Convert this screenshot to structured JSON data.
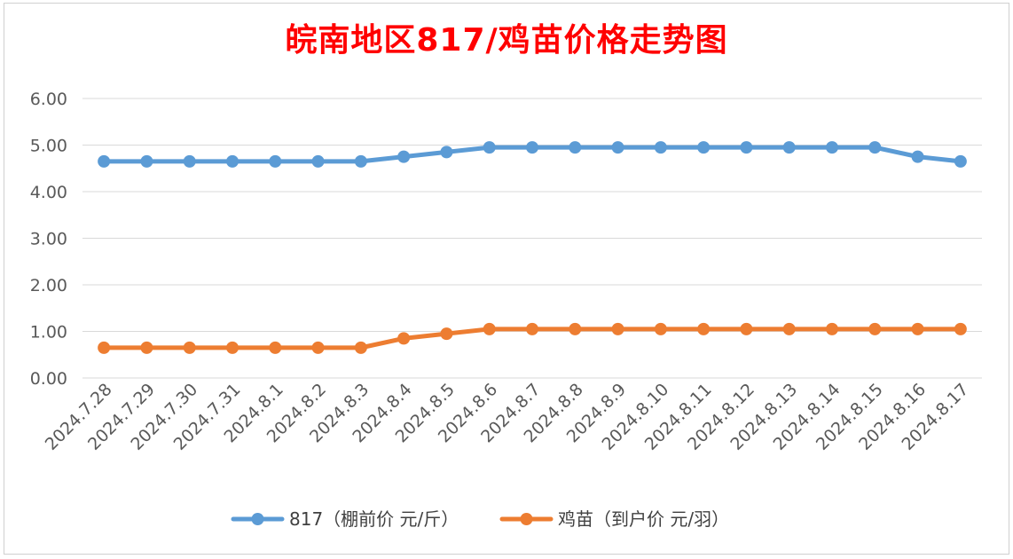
{
  "chart_data": {
    "type": "line",
    "title": "皖南地区817/鸡苗价格走势图",
    "xlabel": "",
    "ylabel": "",
    "ylim": [
      0,
      6
    ],
    "yticks": [
      "0.00",
      "1.00",
      "2.00",
      "3.00",
      "4.00",
      "5.00",
      "6.00"
    ],
    "categories": [
      "2024.7.28",
      "2024.7.29",
      "2024.7.30",
      "2024.7.31",
      "2024.8.1",
      "2024.8.2",
      "2024.8.3",
      "2024.8.4",
      "2024.8.5",
      "2024.8.6",
      "2024.8.7",
      "2024.8.8",
      "2024.8.9",
      "2024.8.10",
      "2024.8.11",
      "2024.8.12",
      "2024.8.13",
      "2024.8.14",
      "2024.8.15",
      "2024.8.16",
      "2024.8.17"
    ],
    "series": [
      {
        "name": "817（棚前价 元/斤）",
        "color": "#5b9bd5",
        "values": [
          4.65,
          4.65,
          4.65,
          4.65,
          4.65,
          4.65,
          4.65,
          4.75,
          4.85,
          4.95,
          4.95,
          4.95,
          4.95,
          4.95,
          4.95,
          4.95,
          4.95,
          4.95,
          4.95,
          4.75,
          4.65
        ]
      },
      {
        "name": "鸡苗（到户价 元/羽）",
        "color": "#ed7d31",
        "values": [
          0.65,
          0.65,
          0.65,
          0.65,
          0.65,
          0.65,
          0.65,
          0.85,
          0.95,
          1.05,
          1.05,
          1.05,
          1.05,
          1.05,
          1.05,
          1.05,
          1.05,
          1.05,
          1.05,
          1.05,
          1.05
        ]
      }
    ],
    "grid": true,
    "legend_position": "bottom"
  }
}
